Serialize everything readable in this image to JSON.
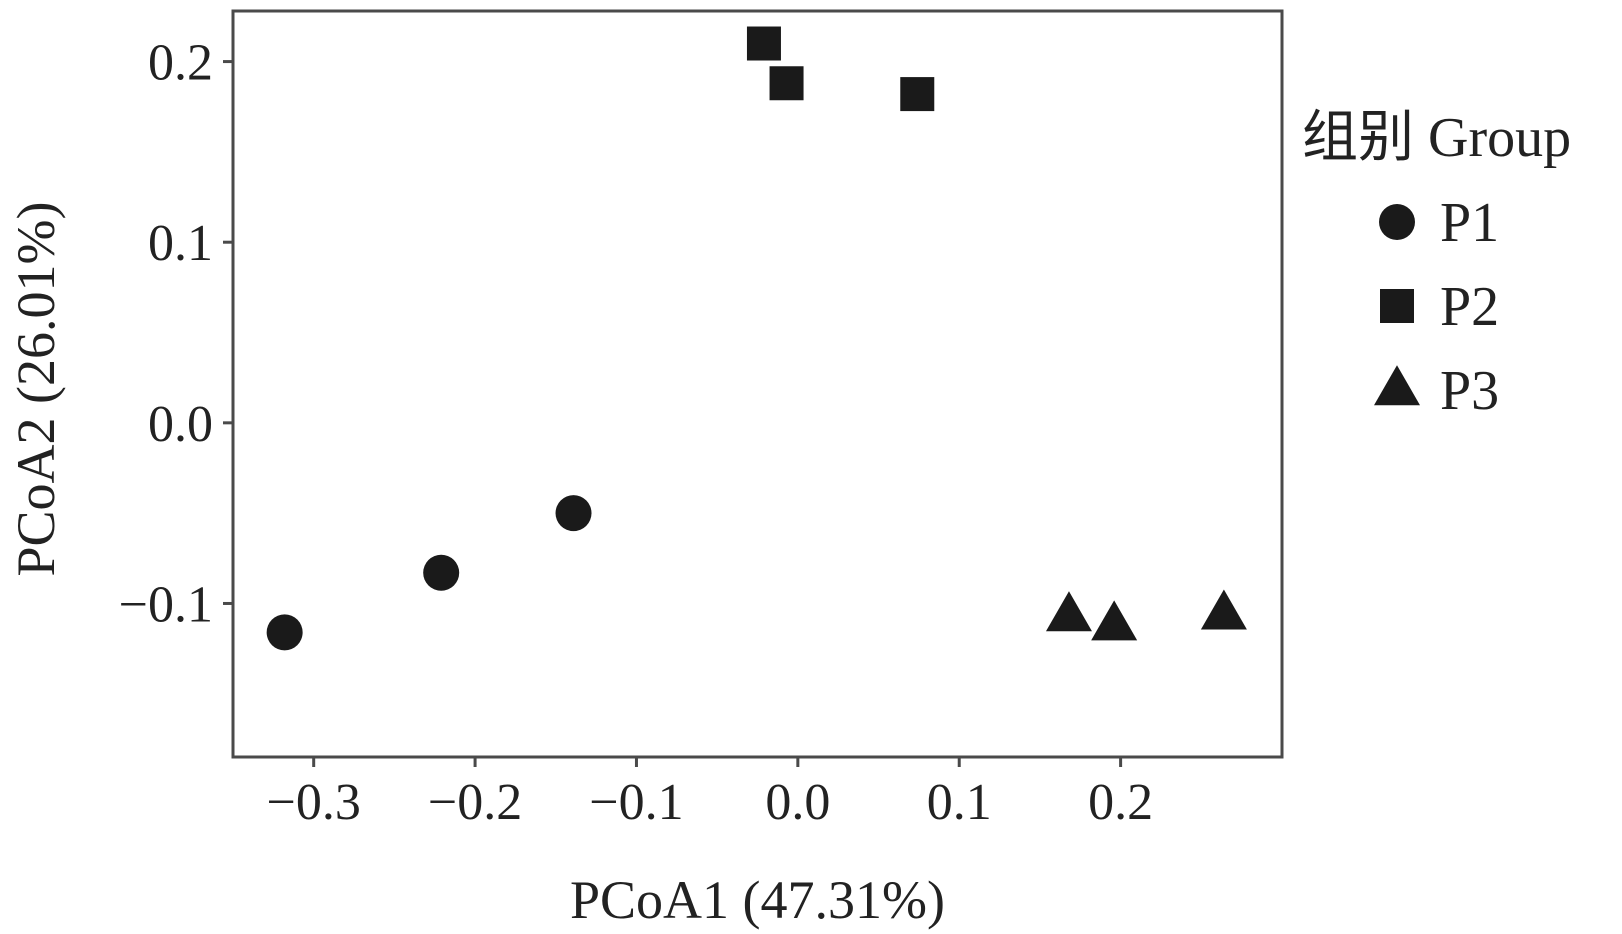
{
  "chart_data": {
    "type": "scatter",
    "title": "",
    "xlabel": "PCoA1 (47.31%)",
    "ylabel": "PCoA2 (26.01%)",
    "xlim": [
      -0.35,
      0.3
    ],
    "ylim": [
      -0.185,
      0.228
    ],
    "xticks": [
      -0.3,
      -0.2,
      -0.1,
      0.0,
      0.1,
      0.2
    ],
    "xtick_labels": [
      "−0.3",
      "−0.2",
      "−0.1",
      "0.0",
      "0.1",
      "0.2"
    ],
    "yticks": [
      -0.1,
      0.0,
      0.1,
      0.2
    ],
    "ytick_labels": [
      "−0.1",
      "0.0",
      "0.1",
      "0.2"
    ],
    "grid": false,
    "legend_title": "组别 Group",
    "legend_position": "right",
    "series": [
      {
        "name": "P1",
        "marker": "circle",
        "color": "#1a1a1a",
        "points": [
          {
            "x": -0.318,
            "y": -0.116
          },
          {
            "x": -0.221,
            "y": -0.083
          },
          {
            "x": -0.139,
            "y": -0.05
          }
        ]
      },
      {
        "name": "P2",
        "marker": "square",
        "color": "#1a1a1a",
        "points": [
          {
            "x": -0.021,
            "y": 0.21
          },
          {
            "x": -0.007,
            "y": 0.188
          },
          {
            "x": 0.074,
            "y": 0.182
          }
        ]
      },
      {
        "name": "P3",
        "marker": "triangle",
        "color": "#1a1a1a",
        "points": [
          {
            "x": 0.168,
            "y": -0.107
          },
          {
            "x": 0.196,
            "y": -0.112
          },
          {
            "x": 0.264,
            "y": -0.106
          }
        ]
      }
    ]
  }
}
